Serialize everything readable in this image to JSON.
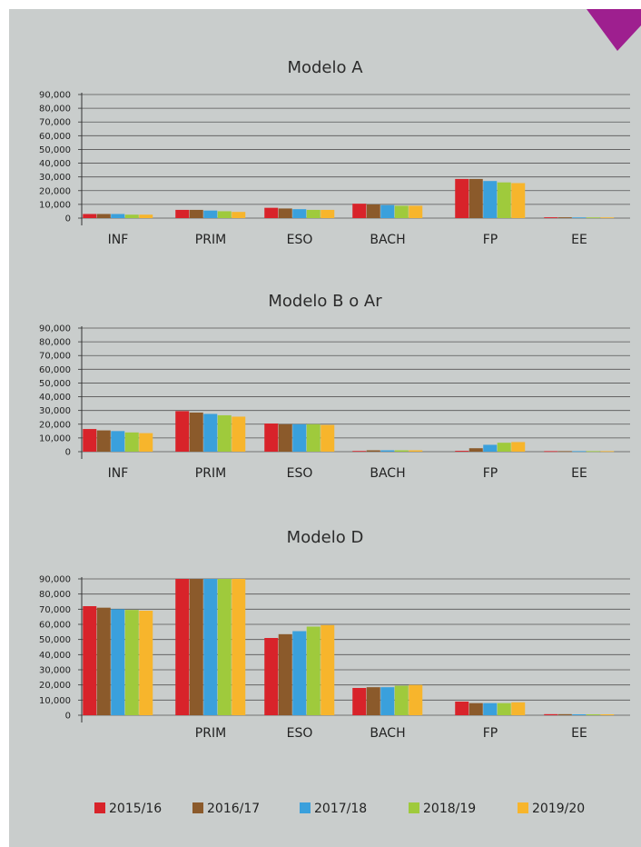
{
  "colors": {
    "panel_bg": "#c9cdcc",
    "corner_accent": "#9e1f8f",
    "series": [
      "#d8232a",
      "#8b5a2b",
      "#3aa0dc",
      "#9fca3c",
      "#f7b52c"
    ]
  },
  "legend": [
    "2015/16",
    "2016/17",
    "2017/18",
    "2018/19",
    "2019/20"
  ],
  "chart_data": [
    {
      "type": "bar",
      "title": "Modelo A",
      "categories": [
        "INF",
        "PRIM",
        "ESO",
        "BACH",
        "FP",
        "EE"
      ],
      "ylim": [
        0,
        90000
      ],
      "yticks": [
        "0",
        "10,000",
        "20,000",
        "30,000",
        "40,000",
        "50,000",
        "60,000",
        "70,000",
        "80,000",
        "90,000"
      ],
      "series": [
        {
          "name": "2015/16",
          "values": [
            3000,
            6000,
            7500,
            10500,
            28500,
            600
          ]
        },
        {
          "name": "2016/17",
          "values": [
            3000,
            6000,
            7000,
            10000,
            28500,
            600
          ]
        },
        {
          "name": "2017/18",
          "values": [
            3000,
            5500,
            6500,
            9500,
            27000,
            500
          ]
        },
        {
          "name": "2018/19",
          "values": [
            2500,
            5000,
            6000,
            9000,
            26000,
            500
          ]
        },
        {
          "name": "2019/20",
          "values": [
            2500,
            4500,
            6000,
            9000,
            25500,
            500
          ]
        }
      ]
    },
    {
      "type": "bar",
      "title": "Modelo B o Ar",
      "categories": [
        "INF",
        "PRIM",
        "ESO",
        "BACH",
        "FP",
        "EE"
      ],
      "ylim": [
        0,
        90000
      ],
      "yticks": [
        "0",
        "10,000",
        "20,000",
        "30,000",
        "40,000",
        "50,000",
        "60,000",
        "70,000",
        "80,000",
        "90,000"
      ],
      "series": [
        {
          "name": "2015/16",
          "values": [
            16500,
            29500,
            20500,
            500,
            600,
            400
          ]
        },
        {
          "name": "2016/17",
          "values": [
            15500,
            28500,
            20000,
            1000,
            2500,
            400
          ]
        },
        {
          "name": "2017/18",
          "values": [
            15000,
            27500,
            20000,
            1000,
            5000,
            400
          ]
        },
        {
          "name": "2018/19",
          "values": [
            14000,
            26500,
            20000,
            1000,
            6500,
            400
          ]
        },
        {
          "name": "2019/20",
          "values": [
            13500,
            25500,
            19500,
            1000,
            7000,
            400
          ]
        }
      ]
    },
    {
      "type": "bar",
      "title": "Modelo D",
      "categories": [
        "",
        "PRIM",
        "ESO",
        "BACH",
        "FP",
        "EE"
      ],
      "ylim": [
        0,
        90000
      ],
      "yticks": [
        "0",
        "10,000",
        "20,000",
        "30,000",
        "40,000",
        "50,000",
        "60,000",
        "70,000",
        "80,000",
        "90,000"
      ],
      "series": [
        {
          "name": "2015/16",
          "values": [
            72000,
            90000,
            51000,
            18000,
            9000,
            700
          ]
        },
        {
          "name": "2016/17",
          "values": [
            71000,
            90000,
            53500,
            18500,
            8000,
            700
          ]
        },
        {
          "name": "2017/18",
          "values": [
            70000,
            90000,
            55500,
            18500,
            8000,
            600
          ]
        },
        {
          "name": "2018/19",
          "values": [
            69500,
            90000,
            58500,
            19500,
            8000,
            600
          ]
        },
        {
          "name": "2019/20",
          "values": [
            69000,
            90000,
            59500,
            20000,
            8500,
            600
          ]
        }
      ]
    }
  ]
}
